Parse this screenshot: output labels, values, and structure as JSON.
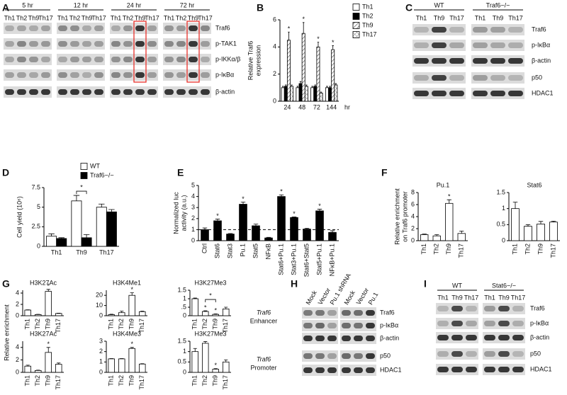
{
  "panel_letters": [
    "A",
    "B",
    "C",
    "D",
    "E",
    "F",
    "G",
    "H",
    "I"
  ],
  "chart_data": [
    {
      "type": "bar",
      "ylabel": [
        "Relative Traf6",
        "expression"
      ],
      "xlabel": "hr",
      "categories": [
        "24",
        "48",
        "72",
        "144"
      ],
      "ylim": [
        0,
        6
      ],
      "yticks": [
        0,
        2,
        4,
        6
      ],
      "legend": "right",
      "series": [
        {
          "name": "Th1",
          "color": "#ffffff",
          "values": [
            1,
            1,
            1,
            1
          ],
          "errors": [
            0.1,
            0.1,
            0.1,
            0.1
          ]
        },
        {
          "name": "Th2",
          "color": "#000000",
          "values": [
            1.1,
            1.3,
            1.1,
            1
          ],
          "errors": [
            0.1,
            0.15,
            0.1,
            0.1
          ]
        },
        {
          "name": "Th9",
          "color": "#ffffff",
          "pattern": "hatch",
          "values": [
            4.5,
            5,
            4,
            3.8
          ],
          "errors": [
            0.6,
            0.8,
            0.35,
            0.3
          ],
          "stars": [
            "*",
            "*",
            "*",
            "*"
          ]
        },
        {
          "name": "Th17",
          "color": "#ffffff",
          "pattern": "crosshatch",
          "values": [
            1.1,
            1.1,
            0.6,
            1.2
          ],
          "errors": [
            0.1,
            0.1,
            0.08,
            0.1
          ]
        }
      ]
    },
    {
      "type": "bar",
      "ylabel": "Cell yield (10⁶)",
      "categories": [
        "Th1",
        "Th9",
        "Th17"
      ],
      "ylim": [
        0,
        7.5
      ],
      "yticks": [
        0,
        2.5,
        5,
        7.5
      ],
      "legend": "upper right",
      "series": [
        {
          "name": "WT",
          "color": "#ffffff",
          "values": [
            1.3,
            5.8,
            5
          ],
          "errors": [
            0.3,
            0.7,
            0.4
          ]
        },
        {
          "name": "Traf6−/−",
          "color": "#000000",
          "values": [
            1,
            1.1,
            4.4
          ],
          "errors": [
            0.1,
            0.4,
            0.3
          ]
        }
      ],
      "brackets": [
        {
          "category": "Th9",
          "label": "*"
        }
      ]
    },
    {
      "type": "bar",
      "ylabel": [
        "Normalized luc",
        "activity (a.u.)"
      ],
      "categories": [
        "Ctrl",
        "Stat6",
        "Stat3",
        "Pu.1",
        "Stat5",
        "NFκB",
        "Stat6+Pu.1",
        "Stat3+Pu.1",
        "Stat6+Stat5",
        "Stat5+Pu.1",
        "NFκB+Pu.1"
      ],
      "rotate_labels": true,
      "ylim": [
        0,
        5
      ],
      "yticks": [
        0,
        1,
        2,
        3,
        4,
        5
      ],
      "reference_line": 1,
      "color": "#000000",
      "values": [
        1,
        1.8,
        0.6,
        3.3,
        1.35,
        0.25,
        4,
        2.1,
        1.05,
        2.7,
        0.75
      ],
      "errors": [
        0.15,
        0.15,
        0.05,
        0.2,
        0.15,
        0.05,
        0.15,
        0.05,
        0.08,
        0.15,
        0.15
      ],
      "stars": [
        null,
        "*",
        null,
        "*",
        null,
        null,
        "*",
        "*",
        null,
        "*",
        null
      ]
    },
    {
      "type": "bar",
      "title": "Pu.1",
      "ylabel": [
        "Relative enrichment",
        "on Traf6 promoter"
      ],
      "categories": [
        "Th1",
        "Th2",
        "Th9",
        "Th17"
      ],
      "rotate_labels": true,
      "ylim": [
        0,
        8
      ],
      "yticks": [
        0,
        2,
        4,
        6,
        8
      ],
      "color": "#ffffff",
      "values": [
        1,
        0.8,
        6.2,
        1.2
      ],
      "errors": [
        0.1,
        0.2,
        0.6,
        0.4
      ],
      "stars": [
        null,
        null,
        "*",
        null
      ]
    },
    {
      "type": "bar",
      "title": "Stat6",
      "categories": [
        "Th1",
        "Th2",
        "Th9",
        "Th17"
      ],
      "rotate_labels": true,
      "ylim": [
        0,
        1.5
      ],
      "yticks": [
        0,
        0.5,
        1,
        1.5
      ],
      "color": "#ffffff",
      "values": [
        1,
        0.45,
        0.52,
        0.58
      ],
      "errors": [
        0.2,
        0.05,
        0.08,
        0.03
      ]
    },
    {
      "type": "bar",
      "title": "H3K27Ac",
      "categories": [
        "Th1",
        "Th2",
        "Th9",
        "Th17"
      ],
      "rotate_labels": true,
      "ylim": [
        0,
        4.5
      ],
      "yticks": [
        0,
        2,
        4
      ],
      "color": "#ffffff",
      "values": [
        1,
        0.2,
        4.3,
        0.4
      ],
      "errors": [
        0.05,
        0.05,
        0.35,
        0.05
      ],
      "stars": [
        null,
        null,
        "*",
        null
      ]
    },
    {
      "type": "bar",
      "title": "H3K4Me1",
      "categories": [
        "Th1",
        "Th2",
        "Th9",
        "Th17"
      ],
      "rotate_labels": true,
      "ylim": [
        0,
        25
      ],
      "yticks": [
        0,
        10,
        20
      ],
      "color": "#ffffff",
      "values": [
        1,
        3,
        20,
        4
      ],
      "errors": [
        0.5,
        1.5,
        2.5,
        0.5
      ],
      "stars": [
        null,
        null,
        "*",
        null
      ]
    },
    {
      "type": "bar",
      "title": "H3K27Me3",
      "categories": [
        "Th1",
        "Th2",
        "Th9",
        "Th17"
      ],
      "rotate_labels": true,
      "ylim": [
        0,
        1.5
      ],
      "yticks": [
        0,
        {
          "value": 0.5,
          "label": ".5"
        },
        1,
        1.5
      ],
      "color": "#ffffff",
      "values": [
        1,
        0.25,
        0.08,
        0.4
      ],
      "errors": [
        0.04,
        0.04,
        0.03,
        0.1
      ],
      "stars": [
        null,
        "*",
        "*",
        null
      ],
      "brackets": [
        {
          "categories": [
            "Th2",
            "Th9"
          ],
          "label": "*"
        }
      ]
    },
    {
      "type": "bar",
      "title": "H3K27Ac",
      "categories": [
        "Th1",
        "Th2",
        "Th9",
        "Th17"
      ],
      "rotate_labels": true,
      "ylim": [
        0,
        5
      ],
      "yticks": [
        0,
        2,
        4
      ],
      "color": "#ffffff",
      "values": [
        1,
        0.3,
        3.2,
        1.3
      ],
      "errors": [
        0.15,
        0.05,
        0.8,
        0.2
      ],
      "stars": [
        null,
        null,
        "*",
        null
      ]
    },
    {
      "type": "bar",
      "title": "H3K4Me3",
      "categories": [
        "Th1",
        "Th2",
        "Th9",
        "Th17"
      ],
      "rotate_labels": true,
      "ylim": [
        0,
        3
      ],
      "yticks": [
        0,
        1,
        2,
        3
      ],
      "color": "#ffffff",
      "values": [
        1.3,
        1.3,
        2.3,
        0.8
      ],
      "errors": [
        0.03,
        0.03,
        0.1,
        0.03
      ],
      "stars": [
        null,
        null,
        "*",
        null
      ]
    },
    {
      "type": "bar",
      "title": "H3K27Me3",
      "categories": [
        "Th1",
        "Th2",
        "Th9",
        "Th17"
      ],
      "rotate_labels": true,
      "ylim": [
        0,
        1.5
      ],
      "yticks": [
        0,
        0.5,
        1,
        1.5
      ],
      "color": "#ffffff",
      "values": [
        1,
        1.4,
        0.15,
        0.5
      ],
      "errors": [
        0.15,
        0.08,
        0.03,
        0.1
      ],
      "stars": [
        null,
        null,
        "*",
        null
      ]
    }
  ],
  "g_ylabel": "Relative enrichment",
  "g_side_labels": [
    [
      "Traf6",
      "Enhancer"
    ],
    [
      "Traf6",
      "Promoter"
    ]
  ],
  "blots": [
    {
      "groups": [
        {
          "label": "5 hr",
          "lanes": [
            "Th1",
            "Th2",
            "Th9",
            "Th17"
          ]
        },
        {
          "label": "12 hr",
          "lanes": [
            "Th1",
            "Th2",
            "Th9",
            "Th17"
          ]
        },
        {
          "label": "24 hr",
          "lanes": [
            "Th1",
            "Th2",
            "Th9",
            "Th17"
          ],
          "highlight_lane": "Th9",
          "highlight_color": "#e8302a"
        },
        {
          "label": "72 hr",
          "lanes": [
            "Th1",
            "Th2",
            "Th9",
            "Th17"
          ],
          "highlight_lane": "Th9",
          "highlight_color": "#e8302a"
        }
      ],
      "rows": [
        "Traf6",
        "p-TAK1",
        "p-IKKα/β",
        "p-IκBα",
        "β-actin"
      ]
    },
    {
      "groups": [
        {
          "label": "WT",
          "lanes": [
            "Th1",
            "Th9",
            "Th17"
          ]
        },
        {
          "label": "Traf6−/−",
          "lanes": [
            "Th1",
            "Th9",
            "Th17"
          ]
        }
      ],
      "rows": [
        "Traf6",
        "p-IκBα",
        "β-actin",
        "p50",
        "HDAC1"
      ]
    },
    {
      "groups": [
        {
          "lanes": [
            "Mock",
            "Vector",
            "Pu.1 shRNA"
          ]
        },
        {
          "lanes": [
            "Mock",
            "Vector",
            "Pu.1"
          ]
        }
      ],
      "rows": [
        "Traf6",
        "p-IκBα",
        "β-actin",
        "p50",
        "HDAC1"
      ]
    },
    {
      "groups": [
        {
          "label": "WT",
          "lanes": [
            "Th1",
            "Th9",
            "Th17"
          ]
        },
        {
          "label": "Stat6−/−",
          "lanes": [
            "Th1",
            "Th9",
            "Th17"
          ]
        }
      ],
      "rows": [
        "Traf6",
        "p-IκBα",
        "β-actin",
        "p50",
        "HDAC1"
      ]
    }
  ]
}
